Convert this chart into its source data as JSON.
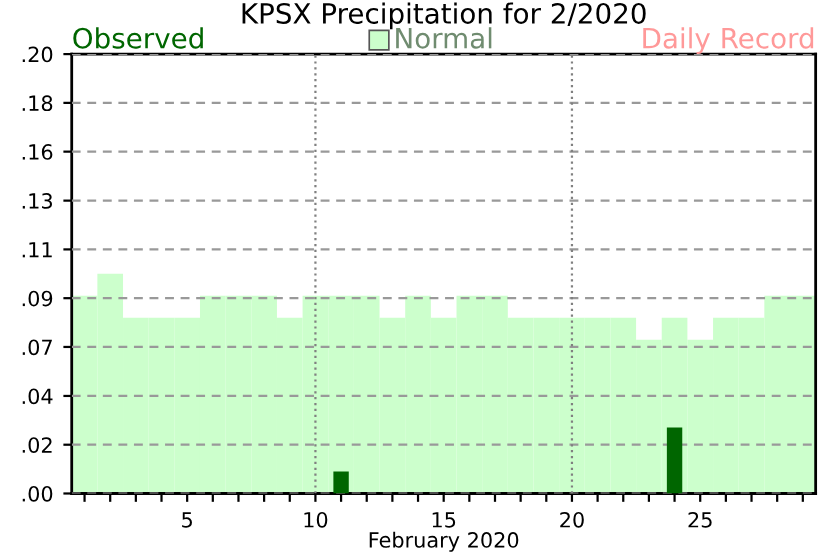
{
  "chart_data": {
    "type": "bar",
    "title": "KPSX Precipitation for 2/2020",
    "xlabel": "February 2020",
    "x": [
      1,
      2,
      3,
      4,
      5,
      6,
      7,
      8,
      9,
      10,
      11,
      12,
      13,
      14,
      15,
      16,
      17,
      18,
      19,
      20,
      21,
      22,
      23,
      24,
      25,
      26,
      27,
      28,
      29
    ],
    "series": [
      {
        "name": "Observed",
        "color": "#006600",
        "values": [
          0,
          0,
          0,
          0,
          0,
          0,
          0,
          0,
          0,
          0,
          0.01,
          0,
          0,
          0,
          0,
          0,
          0,
          0,
          0,
          0,
          0,
          0,
          0,
          0.03,
          0,
          0,
          0,
          0,
          0
        ]
      },
      {
        "name": "Normal",
        "color": "#ccffcc",
        "values": [
          0.09,
          0.1,
          0.08,
          0.08,
          0.08,
          0.09,
          0.09,
          0.09,
          0.08,
          0.09,
          0.09,
          0.09,
          0.08,
          0.09,
          0.08,
          0.09,
          0.09,
          0.08,
          0.08,
          0.08,
          0.08,
          0.08,
          0.07,
          0.08,
          0.07,
          0.08,
          0.08,
          0.09,
          0.09
        ]
      },
      {
        "name": "Daily Record",
        "color": "#ff9999",
        "values": [
          null,
          null,
          null,
          null,
          null,
          null,
          null,
          null,
          null,
          null,
          null,
          null,
          null,
          null,
          null,
          null,
          null,
          null,
          null,
          null,
          null,
          null,
          null,
          null,
          null,
          null,
          null,
          null,
          null
        ]
      }
    ],
    "xlim": [
      0.5,
      29.5
    ],
    "xticks": [
      {
        "value": 1,
        "label": null
      },
      {
        "value": 2,
        "label": null
      },
      {
        "value": 3,
        "label": null
      },
      {
        "value": 4,
        "label": null
      },
      5,
      {
        "value": 6,
        "label": null
      },
      {
        "value": 7,
        "label": null
      },
      {
        "value": 8,
        "label": null
      },
      {
        "value": 9,
        "label": null
      },
      10,
      {
        "value": 11,
        "label": null
      },
      {
        "value": 12,
        "label": null
      },
      {
        "value": 13,
        "label": null
      },
      {
        "value": 14,
        "label": null
      },
      15,
      {
        "value": 16,
        "label": null
      },
      {
        "value": 17,
        "label": null
      },
      {
        "value": 18,
        "label": null
      },
      {
        "value": 19,
        "label": null
      },
      20,
      {
        "value": 21,
        "label": null
      },
      {
        "value": 22,
        "label": null
      },
      {
        "value": 23,
        "label": null
      },
      {
        "value": 24,
        "label": null
      },
      25,
      {
        "value": 26,
        "label": null
      },
      {
        "value": 27,
        "label": null
      },
      {
        "value": 28,
        "label": null
      },
      {
        "value": 29,
        "label": null
      }
    ],
    "ylim": [
      0,
      0.2
    ],
    "yticks": [
      {
        "value": 0,
        "label": ".00"
      },
      {
        "value": 0.0222,
        "label": ".02"
      },
      {
        "value": 0.0444,
        "label": ".04"
      },
      {
        "value": 0.0667,
        "label": ".07"
      },
      {
        "value": 0.0889,
        "label": ".09"
      },
      {
        "value": 0.1111,
        "label": ".11"
      },
      {
        "value": 0.1333,
        "label": ".13"
      },
      {
        "value": 0.1556,
        "label": ".16"
      },
      {
        "value": 0.1778,
        "label": ".18"
      },
      {
        "value": 0.2,
        "label": ".20"
      }
    ],
    "grid": "y",
    "ref_lines": [
      {
        "axis": "x",
        "value": 10,
        "color": "#808080",
        "line_style": "dotted"
      },
      {
        "axis": "x",
        "value": 20,
        "color": "#808080",
        "line_style": "dotted"
      }
    ],
    "legend": "top"
  }
}
